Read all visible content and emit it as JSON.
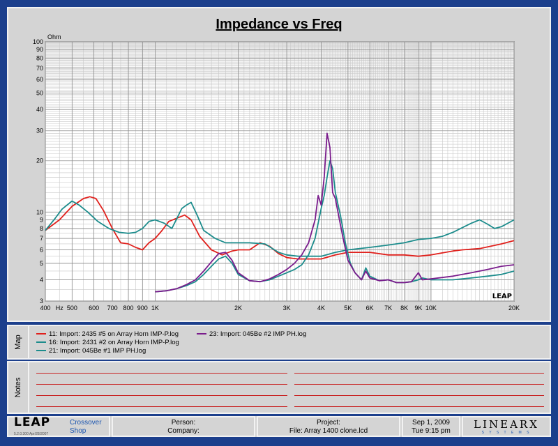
{
  "chart_data": {
    "type": "line",
    "title": "Impedance vs Freq",
    "ylabel_unit": "Ohm",
    "x_scale": "log",
    "y_scale": "log",
    "xlim": [
      400,
      20000
    ],
    "ylim": [
      3,
      100
    ],
    "x_ticks": [
      {
        "v": 400,
        "label": "400"
      },
      {
        "v": 500,
        "label": "500"
      },
      {
        "v": 600,
        "label": "600"
      },
      {
        "v": 700,
        "label": "700"
      },
      {
        "v": 800,
        "label": "800"
      },
      {
        "v": 900,
        "label": "900"
      },
      {
        "v": 1000,
        "label": "1K"
      },
      {
        "v": 2000,
        "label": "2K"
      },
      {
        "v": 3000,
        "label": "3K"
      },
      {
        "v": 4000,
        "label": "4K"
      },
      {
        "v": 5000,
        "label": "5K"
      },
      {
        "v": 6000,
        "label": "6K"
      },
      {
        "v": 7000,
        "label": "7K"
      },
      {
        "v": 8000,
        "label": "8K"
      },
      {
        "v": 9000,
        "label": "9K"
      },
      {
        "v": 10000,
        "label": "10K"
      },
      {
        "v": 20000,
        "label": "20K"
      }
    ],
    "x_unit_label": "Hz",
    "y_ticks": [
      {
        "v": 3,
        "label": "3"
      },
      {
        "v": 4,
        "label": "4"
      },
      {
        "v": 5,
        "label": "5"
      },
      {
        "v": 6,
        "label": "6"
      },
      {
        "v": 7,
        "label": "7"
      },
      {
        "v": 8,
        "label": "8"
      },
      {
        "v": 9,
        "label": "9"
      },
      {
        "v": 10,
        "label": "10"
      },
      {
        "v": 20,
        "label": "20"
      },
      {
        "v": 30,
        "label": "30"
      },
      {
        "v": 40,
        "label": "40"
      },
      {
        "v": 50,
        "label": "50"
      },
      {
        "v": 60,
        "label": "60"
      },
      {
        "v": 70,
        "label": "70"
      },
      {
        "v": 80,
        "label": "80"
      },
      {
        "v": 90,
        "label": "90"
      },
      {
        "v": 100,
        "label": "100"
      }
    ],
    "grid": true,
    "watermark": "LEAP",
    "series": [
      {
        "name": "11: Import: 2435 #5 on Array Horn IMP-P.log",
        "color": "#e0201c",
        "points": [
          [
            400,
            7.8
          ],
          [
            450,
            9.0
          ],
          [
            500,
            10.8
          ],
          [
            550,
            12.0
          ],
          [
            580,
            12.3
          ],
          [
            610,
            12.0
          ],
          [
            650,
            10.2
          ],
          [
            700,
            8.0
          ],
          [
            750,
            6.6
          ],
          [
            800,
            6.5
          ],
          [
            850,
            6.2
          ],
          [
            900,
            6.0
          ],
          [
            950,
            6.6
          ],
          [
            1000,
            7.0
          ],
          [
            1060,
            7.8
          ],
          [
            1120,
            8.8
          ],
          [
            1200,
            9.2
          ],
          [
            1280,
            9.6
          ],
          [
            1350,
            9.0
          ],
          [
            1450,
            7.2
          ],
          [
            1600,
            6.0
          ],
          [
            1750,
            5.6
          ],
          [
            1900,
            5.9
          ],
          [
            2000,
            6.0
          ],
          [
            2200,
            6.0
          ],
          [
            2400,
            6.6
          ],
          [
            2600,
            6.3
          ],
          [
            2800,
            5.7
          ],
          [
            3000,
            5.4
          ],
          [
            3300,
            5.3
          ],
          [
            3700,
            5.3
          ],
          [
            4000,
            5.3
          ],
          [
            4500,
            5.6
          ],
          [
            5000,
            5.8
          ],
          [
            5500,
            5.8
          ],
          [
            6000,
            5.8
          ],
          [
            7000,
            5.6
          ],
          [
            8000,
            5.6
          ],
          [
            9000,
            5.5
          ],
          [
            10000,
            5.6
          ],
          [
            12000,
            5.9
          ],
          [
            13000,
            6.0
          ],
          [
            15000,
            6.1
          ],
          [
            18000,
            6.5
          ],
          [
            20000,
            6.8
          ]
        ]
      },
      {
        "name": "16: Import: 2431 #2 on Array Horn IMP-P.log",
        "color": "#1c8c8c",
        "points": [
          [
            400,
            7.8
          ],
          [
            430,
            9.0
          ],
          [
            460,
            10.4
          ],
          [
            500,
            11.6
          ],
          [
            530,
            11.0
          ],
          [
            570,
            10.0
          ],
          [
            620,
            8.8
          ],
          [
            680,
            8.0
          ],
          [
            740,
            7.6
          ],
          [
            800,
            7.5
          ],
          [
            850,
            7.6
          ],
          [
            900,
            8.0
          ],
          [
            950,
            8.8
          ],
          [
            1000,
            9.0
          ],
          [
            1080,
            8.6
          ],
          [
            1150,
            8.0
          ],
          [
            1250,
            10.5
          ],
          [
            1300,
            11.0
          ],
          [
            1350,
            11.4
          ],
          [
            1420,
            9.6
          ],
          [
            1500,
            7.8
          ],
          [
            1650,
            7.0
          ],
          [
            1800,
            6.6
          ],
          [
            2000,
            6.6
          ],
          [
            2200,
            6.6
          ],
          [
            2500,
            6.5
          ],
          [
            2800,
            5.8
          ],
          [
            3000,
            5.6
          ],
          [
            3300,
            5.5
          ],
          [
            3700,
            5.5
          ],
          [
            4000,
            5.5
          ],
          [
            4500,
            5.8
          ],
          [
            5000,
            6.0
          ],
          [
            6000,
            6.2
          ],
          [
            7000,
            6.4
          ],
          [
            8000,
            6.6
          ],
          [
            9000,
            6.9
          ],
          [
            10000,
            7.0
          ],
          [
            11000,
            7.2
          ],
          [
            12000,
            7.6
          ],
          [
            13000,
            8.1
          ],
          [
            14000,
            8.6
          ],
          [
            15000,
            9.0
          ],
          [
            16000,
            8.5
          ],
          [
            17000,
            8.0
          ],
          [
            18000,
            8.2
          ],
          [
            20000,
            9.0
          ]
        ]
      },
      {
        "name": "21: Import: 045Be #1 IMP PH.log",
        "color": "#1c8c8c",
        "points": [
          [
            1000,
            3.4
          ],
          [
            1100,
            3.45
          ],
          [
            1200,
            3.55
          ],
          [
            1300,
            3.7
          ],
          [
            1400,
            3.9
          ],
          [
            1500,
            4.3
          ],
          [
            1600,
            4.8
          ],
          [
            1700,
            5.3
          ],
          [
            1800,
            5.5
          ],
          [
            1900,
            5.0
          ],
          [
            2000,
            4.3
          ],
          [
            2200,
            3.95
          ],
          [
            2400,
            3.9
          ],
          [
            2600,
            4.0
          ],
          [
            2800,
            4.2
          ],
          [
            3000,
            4.4
          ],
          [
            3200,
            4.6
          ],
          [
            3400,
            4.9
          ],
          [
            3600,
            5.6
          ],
          [
            3800,
            7.0
          ],
          [
            4000,
            10.5
          ],
          [
            4100,
            12.5
          ],
          [
            4200,
            16.0
          ],
          [
            4300,
            20.0
          ],
          [
            4400,
            18.0
          ],
          [
            4500,
            13.0
          ],
          [
            4700,
            9.5
          ],
          [
            4900,
            6.5
          ],
          [
            5100,
            5.0
          ],
          [
            5300,
            4.4
          ],
          [
            5600,
            4.0
          ],
          [
            5800,
            4.7
          ],
          [
            6000,
            4.2
          ],
          [
            6500,
            3.95
          ],
          [
            7000,
            4.0
          ],
          [
            7500,
            3.85
          ],
          [
            8000,
            3.85
          ],
          [
            8500,
            3.9
          ],
          [
            9000,
            4.0
          ],
          [
            9300,
            4.1
          ],
          [
            10000,
            4.0
          ],
          [
            12000,
            4.0
          ],
          [
            14000,
            4.1
          ],
          [
            16000,
            4.2
          ],
          [
            18000,
            4.3
          ],
          [
            20000,
            4.5
          ]
        ]
      },
      {
        "name": "23: Import: 045Be #2 IMP PH.log",
        "color": "#7a1c8c",
        "points": [
          [
            1000,
            3.4
          ],
          [
            1100,
            3.45
          ],
          [
            1200,
            3.55
          ],
          [
            1300,
            3.75
          ],
          [
            1400,
            4.0
          ],
          [
            1500,
            4.5
          ],
          [
            1600,
            5.1
          ],
          [
            1700,
            5.7
          ],
          [
            1800,
            5.8
          ],
          [
            1900,
            5.2
          ],
          [
            2000,
            4.4
          ],
          [
            2200,
            3.95
          ],
          [
            2400,
            3.9
          ],
          [
            2600,
            4.05
          ],
          [
            2800,
            4.3
          ],
          [
            3000,
            4.6
          ],
          [
            3200,
            5.0
          ],
          [
            3400,
            5.6
          ],
          [
            3600,
            6.6
          ],
          [
            3800,
            9.0
          ],
          [
            3900,
            12.5
          ],
          [
            4000,
            11.0
          ],
          [
            4100,
            16.0
          ],
          [
            4200,
            29.0
          ],
          [
            4300,
            24.0
          ],
          [
            4400,
            13.0
          ],
          [
            4500,
            12.0
          ],
          [
            4600,
            10.0
          ],
          [
            4800,
            7.0
          ],
          [
            5000,
            5.2
          ],
          [
            5300,
            4.4
          ],
          [
            5600,
            4.0
          ],
          [
            5800,
            4.5
          ],
          [
            6000,
            4.1
          ],
          [
            6500,
            3.95
          ],
          [
            7000,
            4.0
          ],
          [
            7500,
            3.85
          ],
          [
            8000,
            3.85
          ],
          [
            8500,
            3.9
          ],
          [
            9000,
            4.4
          ],
          [
            9300,
            4.0
          ],
          [
            10000,
            4.05
          ],
          [
            12000,
            4.2
          ],
          [
            14000,
            4.4
          ],
          [
            16000,
            4.6
          ],
          [
            18000,
            4.8
          ],
          [
            20000,
            4.9
          ]
        ]
      }
    ]
  },
  "side_tabs": {
    "map": "Map",
    "notes": "Notes"
  },
  "legend": [
    {
      "text": "11: Import: 2435 #5 on Array Horn IMP-P.log",
      "color": "#e0201c"
    },
    {
      "text": "16: Import: 2431 #2 on Array Horn IMP-P.log",
      "color": "#1c8c8c"
    },
    {
      "text": "21: Import: 045Be #1 IMP PH.log",
      "color": "#1c8c8c"
    },
    {
      "text": "23: Import: 045Be #2 IMP PH.log",
      "color": "#7a1c8c"
    }
  ],
  "footer": {
    "logo": "LEAP",
    "app_line1": "Crossover",
    "app_line2": "Shop",
    "version": "5.2.0.300  Apr/28/2007",
    "person_label": "Person:",
    "company_label": "Company:",
    "project_label": "Project:",
    "file_label": "File: Array 1400 clone.lcd",
    "date": "Sep  1, 2009",
    "time": "Tue  9:15 pm",
    "brand": "LINEARX",
    "brand_sub": "S Y S T E M S"
  },
  "colors": {
    "background": "#1c3f8c",
    "panel": "#d4d4d4",
    "notes_line": "#c82020",
    "app_text": "#1c56b0"
  }
}
